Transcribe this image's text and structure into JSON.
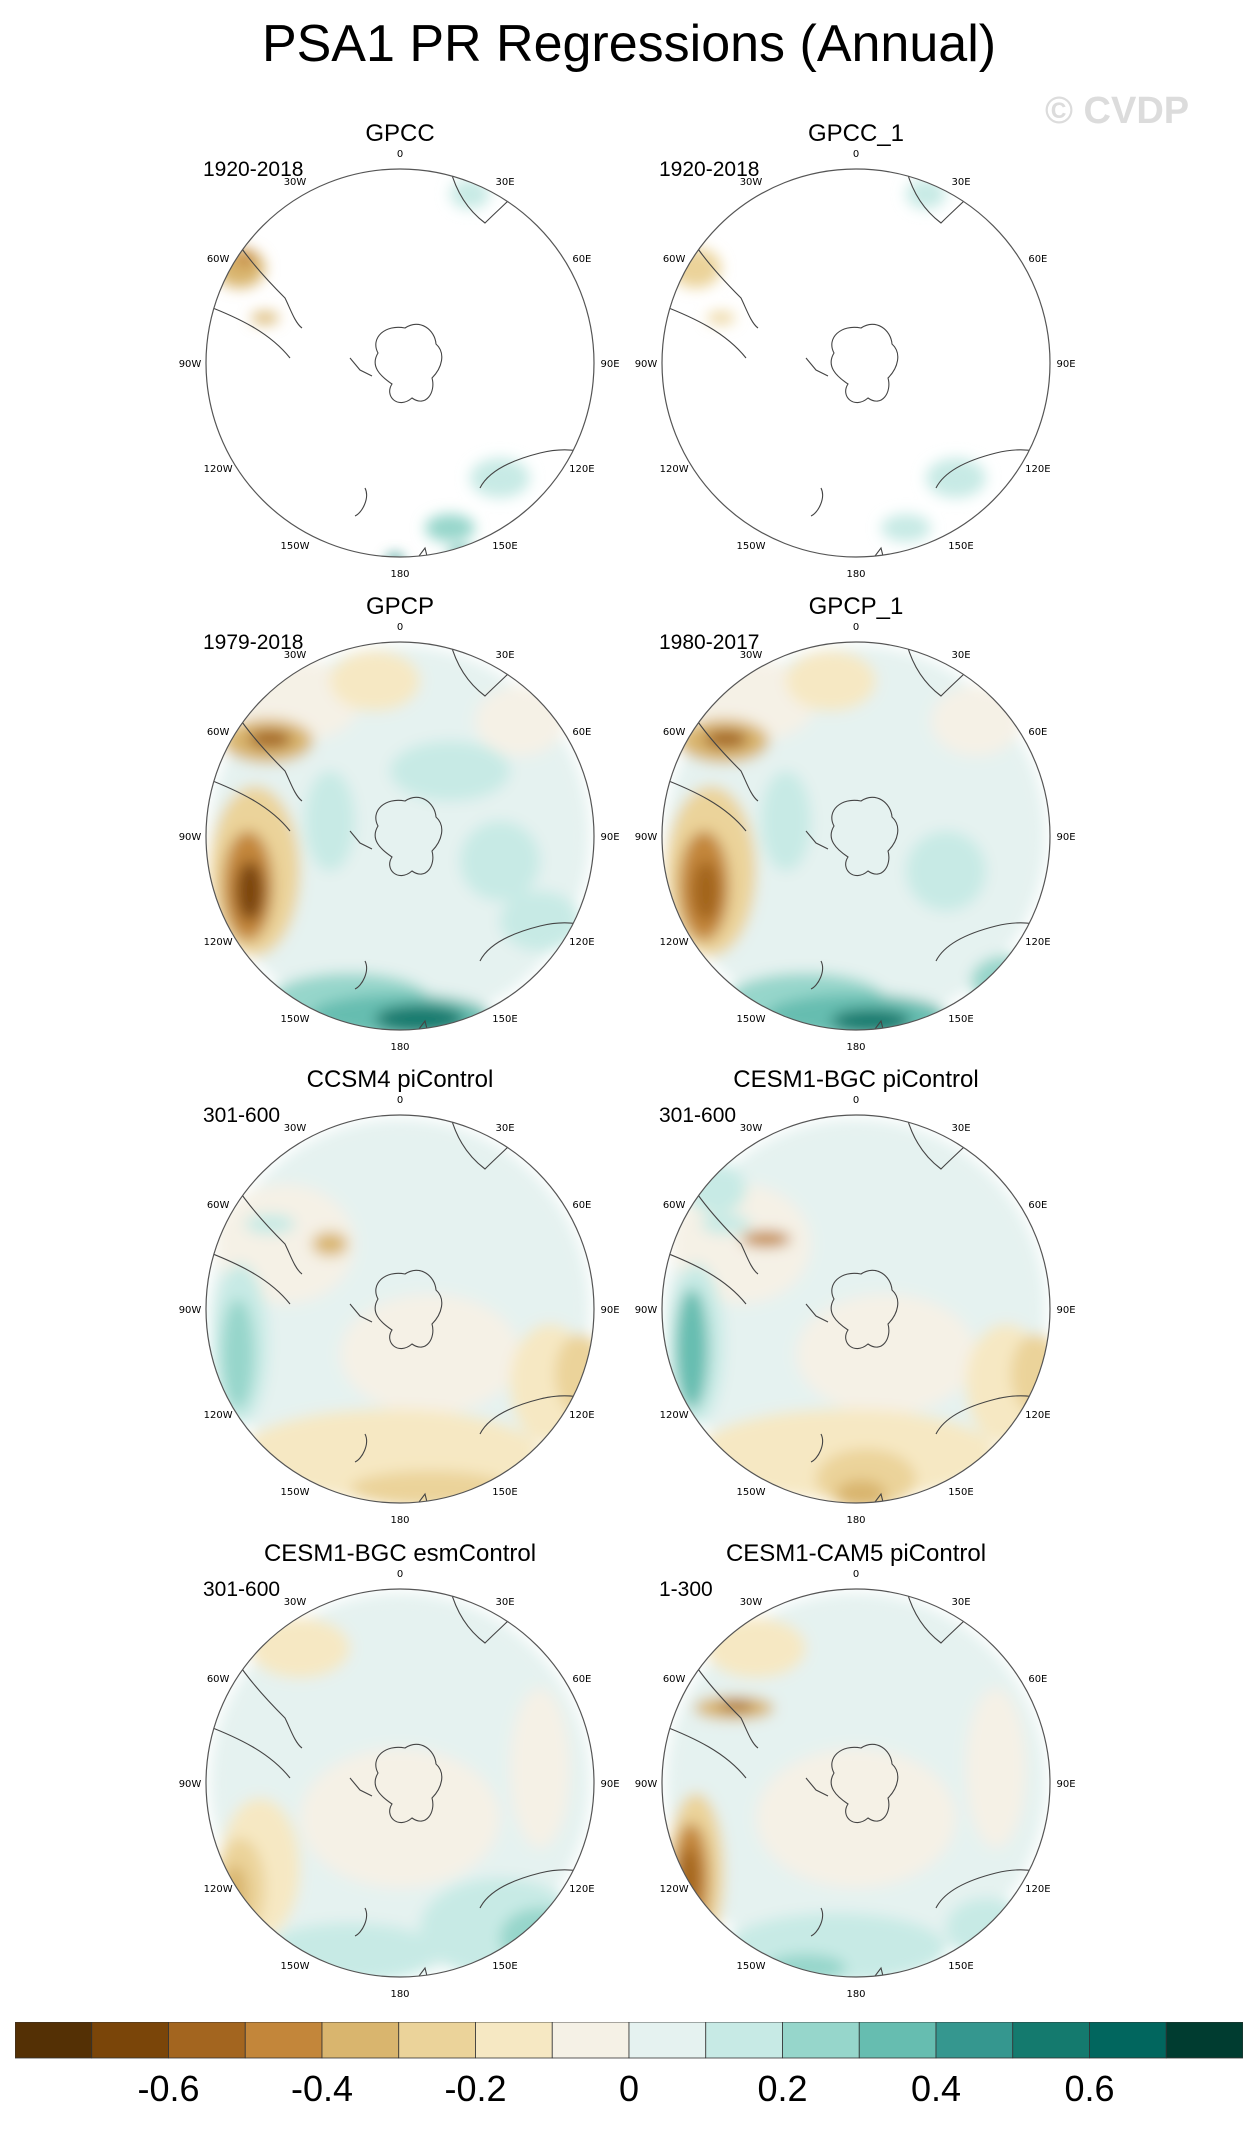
{
  "title": "PSA1 PR Regressions (Annual)",
  "watermark": "© CVDP",
  "lon_labels": [
    "0",
    "30E",
    "60E",
    "90E",
    "120E",
    "150E",
    "180",
    "150W",
    "120W",
    "90W",
    "60W",
    "30W"
  ],
  "panels": [
    {
      "title": "GPCC",
      "period": "1920-2018",
      "coverage": "land"
    },
    {
      "title": "GPCC_1",
      "period": "1920-2018",
      "coverage": "land"
    },
    {
      "title": "GPCP",
      "period": "1979-2018",
      "coverage": "global"
    },
    {
      "title": "GPCP_1",
      "period": "1980-2017",
      "coverage": "global"
    },
    {
      "title": "CCSM4 piControl",
      "period": "301-600",
      "coverage": "global"
    },
    {
      "title": "CESM1-BGC piControl",
      "period": "301-600",
      "coverage": "global"
    },
    {
      "title": "CESM1-BGC esmControl",
      "period": "301-600",
      "coverage": "global"
    },
    {
      "title": "CESM1-CAM5 piControl",
      "period": "1-300",
      "coverage": "global"
    }
  ],
  "colorbar": {
    "colors": [
      "#543005",
      "#7a4509",
      "#a3651f",
      "#c3863a",
      "#d9b56e",
      "#ebd39a",
      "#f6e8c3",
      "#f5f1e6",
      "#e5f2f0",
      "#c7eae5",
      "#96d6cb",
      "#66bdb0",
      "#35978f",
      "#147a6e",
      "#01665e",
      "#003c30"
    ],
    "labels": [
      "-0.6",
      "-0.4",
      "-0.2",
      "0",
      "0.2",
      "0.4",
      "0.6"
    ]
  }
}
